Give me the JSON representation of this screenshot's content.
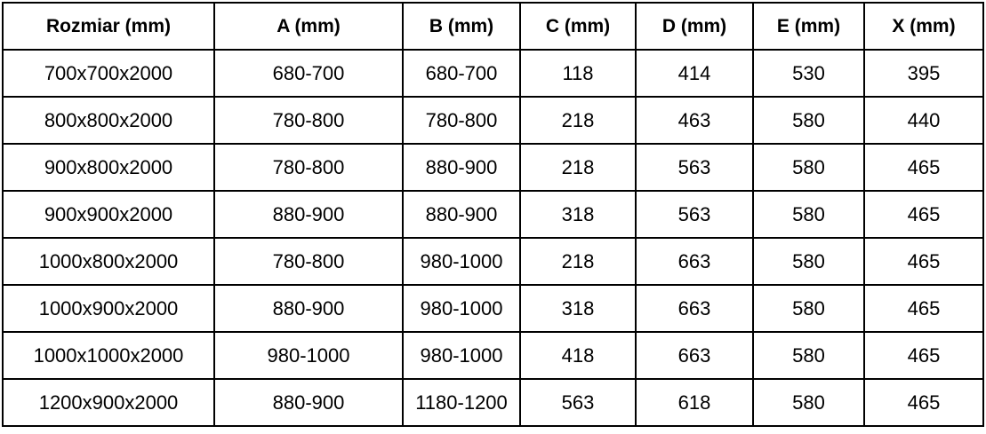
{
  "table": {
    "columns": [
      "Rozmiar (mm)",
      "A (mm)",
      "B (mm)",
      "C (mm)",
      "D (mm)",
      "E (mm)",
      "X (mm)"
    ],
    "rows": [
      [
        "700x700x2000",
        "680-700",
        "680-700",
        "118",
        "414",
        "530",
        "395"
      ],
      [
        "800x800x2000",
        "780-800",
        "780-800",
        "218",
        "463",
        "580",
        "440"
      ],
      [
        "900x800x2000",
        "780-800",
        "880-900",
        "218",
        "563",
        "580",
        "465"
      ],
      [
        "900x900x2000",
        "880-900",
        "880-900",
        "318",
        "563",
        "580",
        "465"
      ],
      [
        "1000x800x2000",
        "780-800",
        "980-1000",
        "218",
        "663",
        "580",
        "465"
      ],
      [
        "1000x900x2000",
        "880-900",
        "980-1000",
        "318",
        "663",
        "580",
        "465"
      ],
      [
        "1000x1000x2000",
        "980-1000",
        "980-1000",
        "418",
        "663",
        "580",
        "465"
      ],
      [
        "1200x900x2000",
        "880-900",
        "1180-1200",
        "563",
        "618",
        "580",
        "465"
      ]
    ]
  },
  "chart_data": {
    "type": "table",
    "title": "",
    "columns": [
      "Rozmiar (mm)",
      "A (mm)",
      "B (mm)",
      "C (mm)",
      "D (mm)",
      "E (mm)",
      "X (mm)"
    ],
    "rows": [
      [
        "700x700x2000",
        "680-700",
        "680-700",
        "118",
        "414",
        "530",
        "395"
      ],
      [
        "800x800x2000",
        "780-800",
        "780-800",
        "218",
        "463",
        "580",
        "440"
      ],
      [
        "900x800x2000",
        "780-800",
        "880-900",
        "218",
        "563",
        "580",
        "465"
      ],
      [
        "900x900x2000",
        "880-900",
        "880-900",
        "318",
        "563",
        "580",
        "465"
      ],
      [
        "1000x800x2000",
        "780-800",
        "980-1000",
        "218",
        "663",
        "580",
        "465"
      ],
      [
        "1000x900x2000",
        "880-900",
        "980-1000",
        "318",
        "663",
        "580",
        "465"
      ],
      [
        "1000x1000x2000",
        "980-1000",
        "980-1000",
        "418",
        "663",
        "580",
        "465"
      ],
      [
        "1200x900x2000",
        "880-900",
        "1180-1200",
        "563",
        "618",
        "580",
        "465"
      ]
    ]
  },
  "colors": {
    "border": "#000000",
    "text": "#000000",
    "background": "#ffffff"
  }
}
